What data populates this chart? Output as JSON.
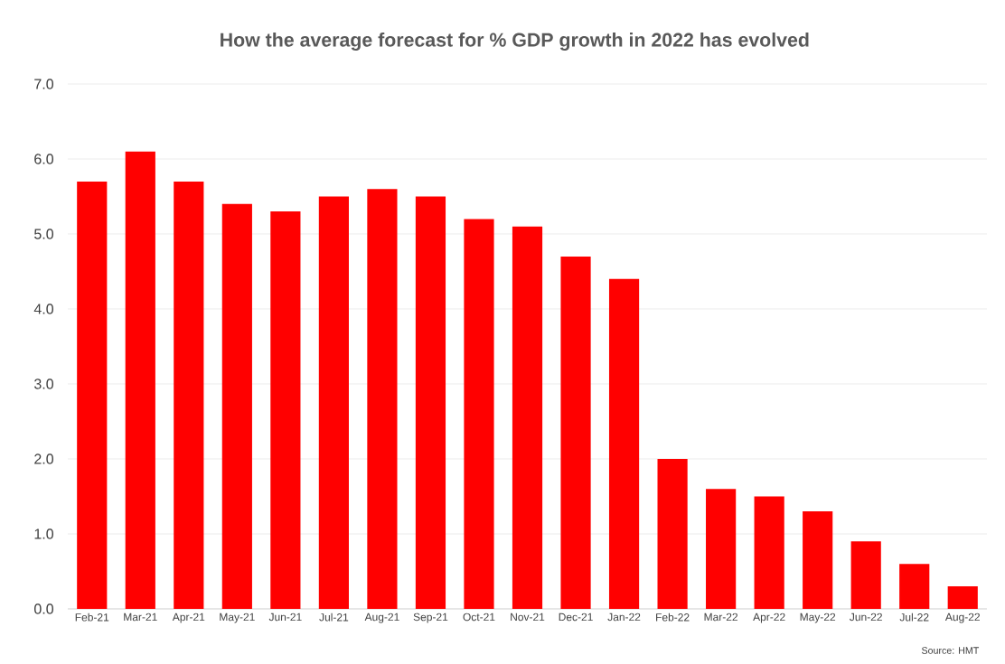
{
  "chart_data": {
    "type": "bar",
    "title": "How the average forecast for % GDP growth in 2022 has evolved",
    "categories": [
      "Feb-21",
      "Mar-21",
      "Apr-21",
      "May-21",
      "Jun-21",
      "Jul-21",
      "Aug-21",
      "Sep-21",
      "Oct-21",
      "Nov-21",
      "Dec-21",
      "Jan-22",
      "Feb-22",
      "Mar-22",
      "Apr-22",
      "May-22",
      "Jun-22",
      "Jul-22",
      "Aug-22"
    ],
    "values": [
      5.7,
      6.1,
      5.7,
      5.4,
      5.3,
      5.5,
      5.6,
      5.5,
      5.2,
      5.1,
      4.7,
      4.4,
      2.0,
      1.6,
      1.5,
      1.3,
      0.9,
      0.6,
      0.3
    ],
    "color": "#ff0000",
    "ylim": [
      0,
      7
    ],
    "yticks": [
      {
        "value": 0,
        "label": "0.0"
      },
      {
        "value": 1,
        "label": "1.0"
      },
      {
        "value": 2,
        "label": "2.0"
      },
      {
        "value": 3,
        "label": "3.0"
      },
      {
        "value": 4,
        "label": "4.0"
      },
      {
        "value": 5,
        "label": "5.0"
      },
      {
        "value": 6,
        "label": "6.0"
      },
      {
        "value": 7,
        "label": "7.0"
      }
    ],
    "grid": "y",
    "annotations": [
      "Source: HMT"
    ]
  }
}
